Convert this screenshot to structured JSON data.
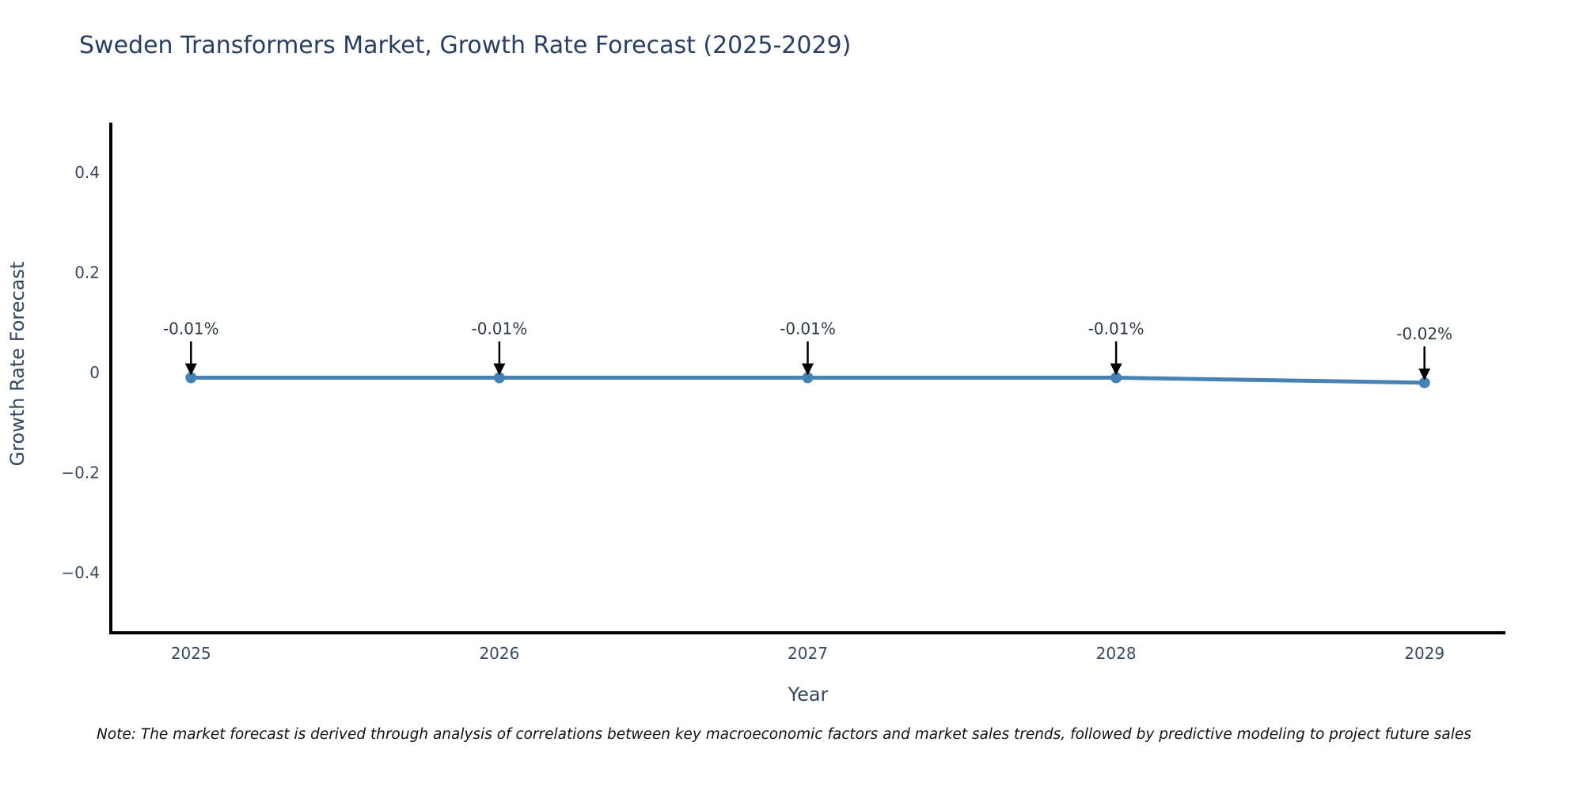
{
  "title": "Sweden Transformers Market, Growth Rate Forecast (2025-2029)",
  "note": "Note: The market forecast is derived through analysis of correlations between key macroeconomic factors and market sales trends, followed by predictive modeling to project future sales",
  "colors": {
    "title": "#2a3f5f",
    "axis_text": "#3a4a5e",
    "axis_line": "#000000",
    "line": "#4682b4",
    "marker": "#4682b4",
    "arrow": "#000000",
    "note": "#111111",
    "background": "#ffffff"
  },
  "chart_data": {
    "type": "line",
    "title": "Sweden Transformers Market, Growth Rate Forecast (2025-2029)",
    "xlabel": "Year",
    "ylabel": "Growth Rate Forecast",
    "x": [
      2025,
      2026,
      2027,
      2028,
      2029
    ],
    "values": [
      -0.01,
      -0.01,
      -0.01,
      -0.01,
      -0.02
    ],
    "point_labels": [
      "-0.01%",
      "-0.01%",
      "-0.01%",
      "-0.01%",
      "-0.02%"
    ],
    "xtick_labels": [
      "2025",
      "2026",
      "2027",
      "2028",
      "2029"
    ],
    "yticks": [
      0.4,
      0.2,
      0,
      -0.2,
      -0.4
    ],
    "ytick_labels": [
      "0.4",
      "0.2",
      "0",
      "−0.2",
      "−0.4"
    ],
    "ylim": [
      -0.52,
      0.5
    ],
    "xlim": [
      2024.74,
      2029.26
    ],
    "grid": false,
    "legend": "none",
    "marker_size": 7,
    "line_width": 5
  }
}
